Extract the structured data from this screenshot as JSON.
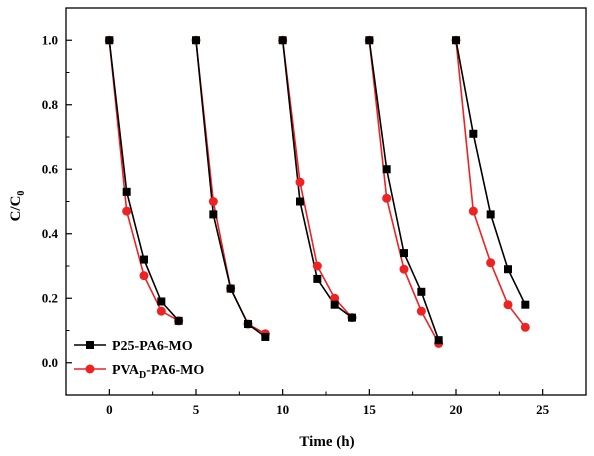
{
  "chart_data": {
    "type": "line",
    "xlabel": "Time (h)",
    "ylabel_main": "C/C",
    "ylabel_sub": "0",
    "xlim": [
      -2.5,
      27.5
    ],
    "ylim": [
      -0.1,
      1.1
    ],
    "x_ticks": [
      "0",
      "5",
      "10",
      "15",
      "20",
      "25"
    ],
    "y_ticks": [
      "0.0",
      "0.2",
      "0.4",
      "0.6",
      "0.8",
      "1.0"
    ],
    "legend_position": "bottom-left",
    "series": [
      {
        "name": "P25-PA6-MO",
        "legend_parts": [
          "P25-PA6-MO"
        ],
        "color": "#000000",
        "marker": "square",
        "runs": [
          {
            "x": [
              0,
              1,
              2,
              3,
              4
            ],
            "y": [
              1.0,
              0.53,
              0.32,
              0.19,
              0.13
            ]
          },
          {
            "x": [
              5,
              6,
              7,
              8,
              9
            ],
            "y": [
              1.0,
              0.46,
              0.23,
              0.12,
              0.08
            ]
          },
          {
            "x": [
              10,
              11,
              12,
              13,
              14
            ],
            "y": [
              1.0,
              0.5,
              0.26,
              0.18,
              0.14
            ]
          },
          {
            "x": [
              15,
              16,
              17,
              18,
              19
            ],
            "y": [
              1.0,
              0.6,
              0.34,
              0.22,
              0.07
            ]
          },
          {
            "x": [
              20,
              21,
              22,
              23,
              24
            ],
            "y": [
              1.0,
              0.71,
              0.46,
              0.29,
              0.18
            ]
          }
        ]
      },
      {
        "name": "PVAD-PA6-MO",
        "legend_parts": [
          "PVA",
          "D",
          "-PA6-MO"
        ],
        "color": "#ee2222",
        "marker": "circle",
        "runs": [
          {
            "x": [
              0,
              1,
              2,
              3,
              4
            ],
            "y": [
              1.0,
              0.47,
              0.27,
              0.16,
              0.13
            ]
          },
          {
            "x": [
              5,
              6,
              7,
              8,
              9
            ],
            "y": [
              1.0,
              0.5,
              0.23,
              0.12,
              0.09
            ]
          },
          {
            "x": [
              10,
              11,
              12,
              13,
              14
            ],
            "y": [
              1.0,
              0.56,
              0.3,
              0.2,
              0.14
            ]
          },
          {
            "x": [
              15,
              16,
              17,
              18,
              19
            ],
            "y": [
              1.0,
              0.51,
              0.29,
              0.16,
              0.06
            ]
          },
          {
            "x": [
              20,
              21,
              22,
              23,
              24
            ],
            "y": [
              1.0,
              0.47,
              0.31,
              0.18,
              0.11
            ]
          }
        ]
      }
    ]
  }
}
